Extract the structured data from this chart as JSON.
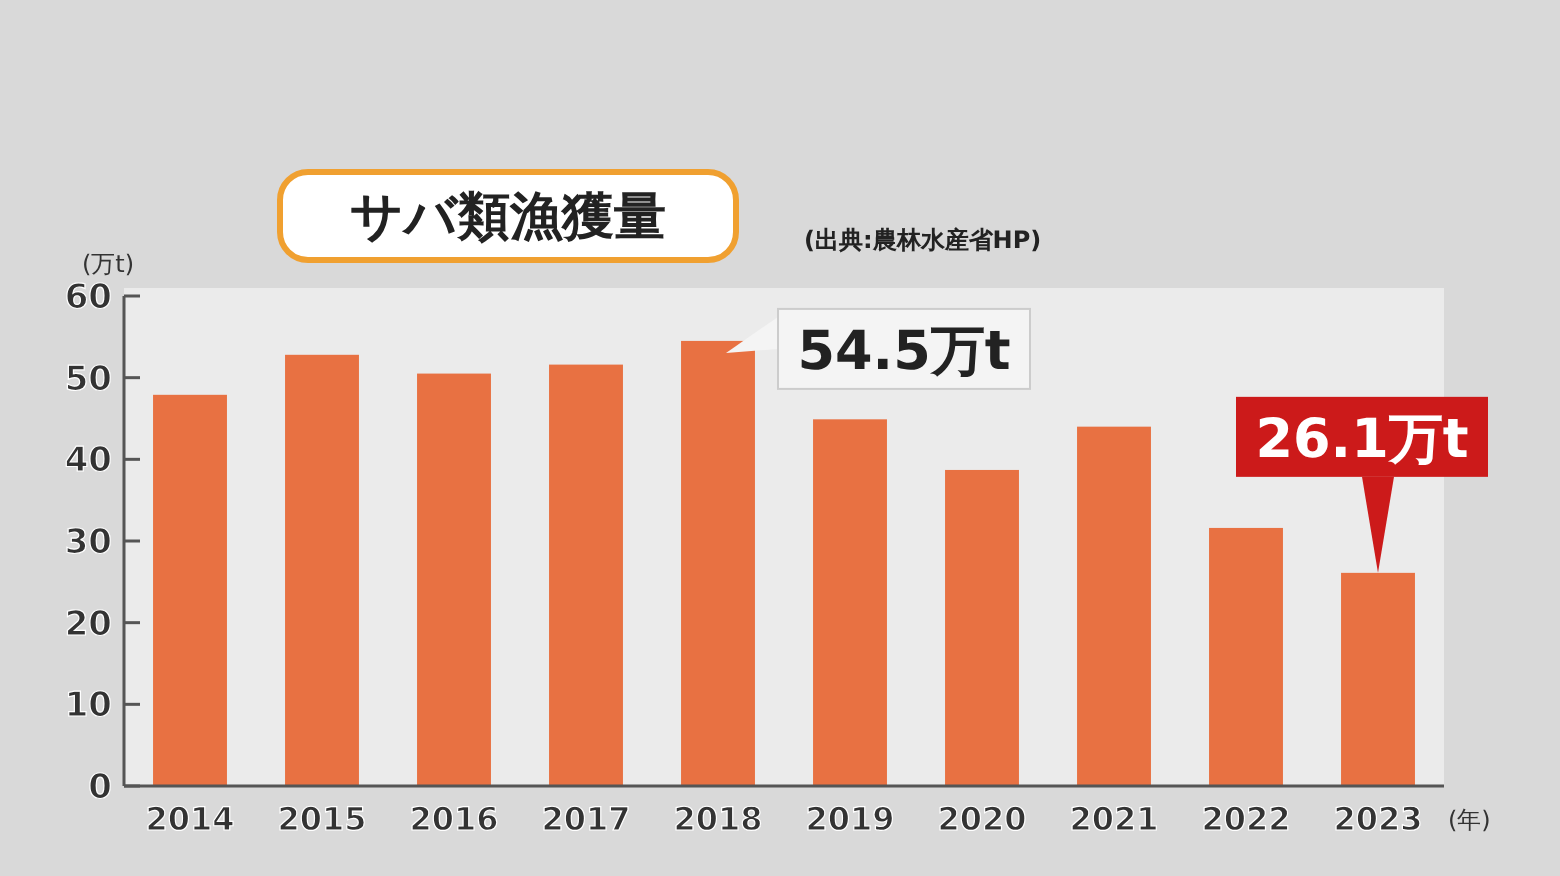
{
  "chart_data": {
    "type": "bar",
    "title": "サバ類漁獲量",
    "subtitle": "(出典:農林水産省HP)",
    "ylabel": "(万t)",
    "xlabel": "(年)",
    "categories": [
      "2014",
      "2015",
      "2016",
      "2017",
      "2018",
      "2019",
      "2020",
      "2021",
      "2022",
      "2023"
    ],
    "values": [
      47.9,
      52.8,
      50.5,
      51.6,
      54.5,
      44.9,
      38.7,
      44.0,
      31.6,
      26.1
    ],
    "color": "#e87142",
    "ylim": [
      0,
      60
    ],
    "yticks": [
      0,
      10,
      20,
      30,
      40,
      50,
      60
    ],
    "grid": false,
    "annotations": [
      {
        "text": "54.5万t",
        "x": "2018",
        "y": 54.5
      },
      {
        "text": "26.1万t",
        "x": "2023",
        "y": 26.1
      }
    ]
  }
}
